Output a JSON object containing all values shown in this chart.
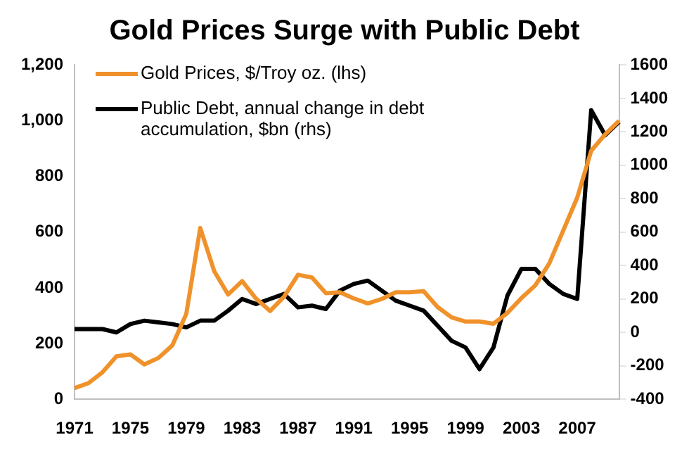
{
  "chart_data": {
    "type": "line",
    "title": "Gold Prices Surge with Public Debt",
    "categories": [
      "1971",
      null,
      null,
      null,
      "1975",
      null,
      null,
      null,
      "1979",
      null,
      null,
      null,
      "1983",
      null,
      null,
      null,
      "1987",
      null,
      null,
      null,
      "1991",
      null,
      null,
      null,
      "1995",
      null,
      null,
      null,
      "1999",
      null,
      null,
      null,
      "2003",
      null,
      null,
      null,
      "2007",
      null,
      null,
      null
    ],
    "series": [
      {
        "name": "Gold Prices, $/Troy oz. (lhs)",
        "color": "#f0922b",
        "values": [
          40,
          58,
          97,
          154,
          161,
          125,
          148,
          193,
          306,
          615,
          460,
          376,
          424,
          361,
          317,
          368,
          447,
          437,
          381,
          384,
          362,
          344,
          360,
          384,
          384,
          388,
          331,
          294,
          279,
          279,
          271,
          310,
          363,
          409,
          488,
          606,
          724,
          892,
          951,
          1000
        ]
      },
      {
        "name": "Public Debt, annual change in debt accumulation, $bn (rhs)",
        "color": "#000000",
        "axis": "y2",
        "values": [
          20,
          20,
          20,
          0,
          50,
          70,
          60,
          50,
          30,
          70,
          70,
          130,
          200,
          170,
          200,
          230,
          150,
          160,
          140,
          250,
          290,
          310,
          250,
          190,
          160,
          130,
          40,
          -50,
          -90,
          -220,
          -90,
          220,
          380,
          380,
          290,
          230,
          200,
          1330,
          1180,
          1260
        ]
      }
    ],
    "ylim": [
      0,
      1200
    ],
    "yticks": [
      0,
      200,
      400,
      600,
      800,
      {
        "value": 1000,
        "label": "1,000"
      },
      {
        "value": 1200,
        "label": "1,200"
      }
    ],
    "y2lim": [
      -400,
      1600
    ],
    "y2ticks": [
      -400,
      -200,
      0,
      200,
      400,
      600,
      800,
      1000,
      1200,
      1400,
      1600
    ],
    "grid": false,
    "legend": "top left"
  }
}
